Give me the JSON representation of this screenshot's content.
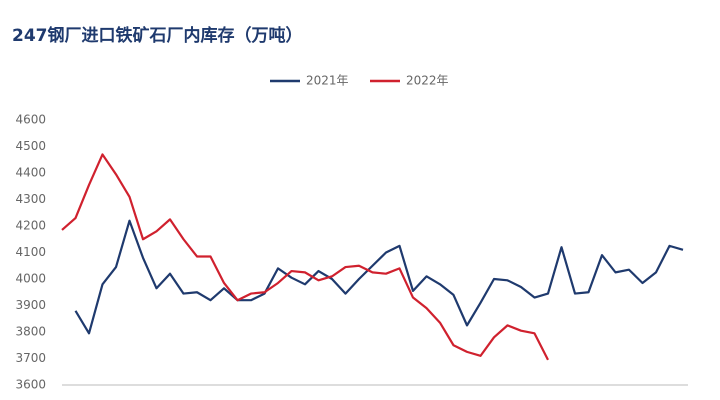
{
  "chart_data": {
    "type": "line",
    "title": "247钢厂进口铁矿石厂内库存（万吨）",
    "categories": [
      null,
      null,
      null,
      null,
      null,
      null,
      null,
      null,
      null,
      null,
      null,
      null,
      null,
      null,
      null,
      null,
      null,
      null,
      null,
      null,
      null,
      null,
      null,
      null,
      null,
      null,
      null,
      null,
      null,
      null,
      null,
      null,
      null,
      null,
      null,
      null,
      null,
      null,
      null,
      null,
      null,
      null,
      null,
      null,
      null,
      null,
      null
    ],
    "series": [
      {
        "name": "2021年",
        "color": "#1f3a6e",
        "values": [
          null,
          3880,
          3795,
          3980,
          4045,
          4220,
          4080,
          3965,
          4020,
          3945,
          3950,
          3920,
          3965,
          3920,
          3920,
          3945,
          4040,
          4005,
          3980,
          4030,
          4000,
          3945,
          4000,
          4050,
          4100,
          4125,
          3955,
          4010,
          3980,
          3940,
          3825,
          3910,
          4000,
          3995,
          3970,
          3930,
          3945,
          4120,
          3945,
          3950,
          4090,
          4025,
          4035,
          3985,
          4025,
          4125,
          4110
        ]
      },
      {
        "name": "2022年",
        "color": "#d0212e",
        "values": [
          4185,
          4230,
          4355,
          4470,
          4395,
          4310,
          4150,
          4180,
          4225,
          4150,
          4085,
          4085,
          3985,
          3920,
          3945,
          3950,
          3985,
          4030,
          4025,
          3995,
          4010,
          4045,
          4050,
          4025,
          4020,
          4040,
          3930,
          3890,
          3835,
          3750,
          3725,
          3710,
          3780,
          3825,
          3805,
          3795,
          3695,
          null,
          null,
          null,
          null,
          null,
          null,
          null,
          null,
          null,
          null
        ]
      }
    ],
    "ylim": [
      3600,
      4600
    ],
    "yticks": [
      3600,
      3700,
      3800,
      3900,
      4000,
      4100,
      4200,
      4300,
      4400,
      4500,
      4600
    ],
    "grid": false,
    "legend": "top"
  }
}
